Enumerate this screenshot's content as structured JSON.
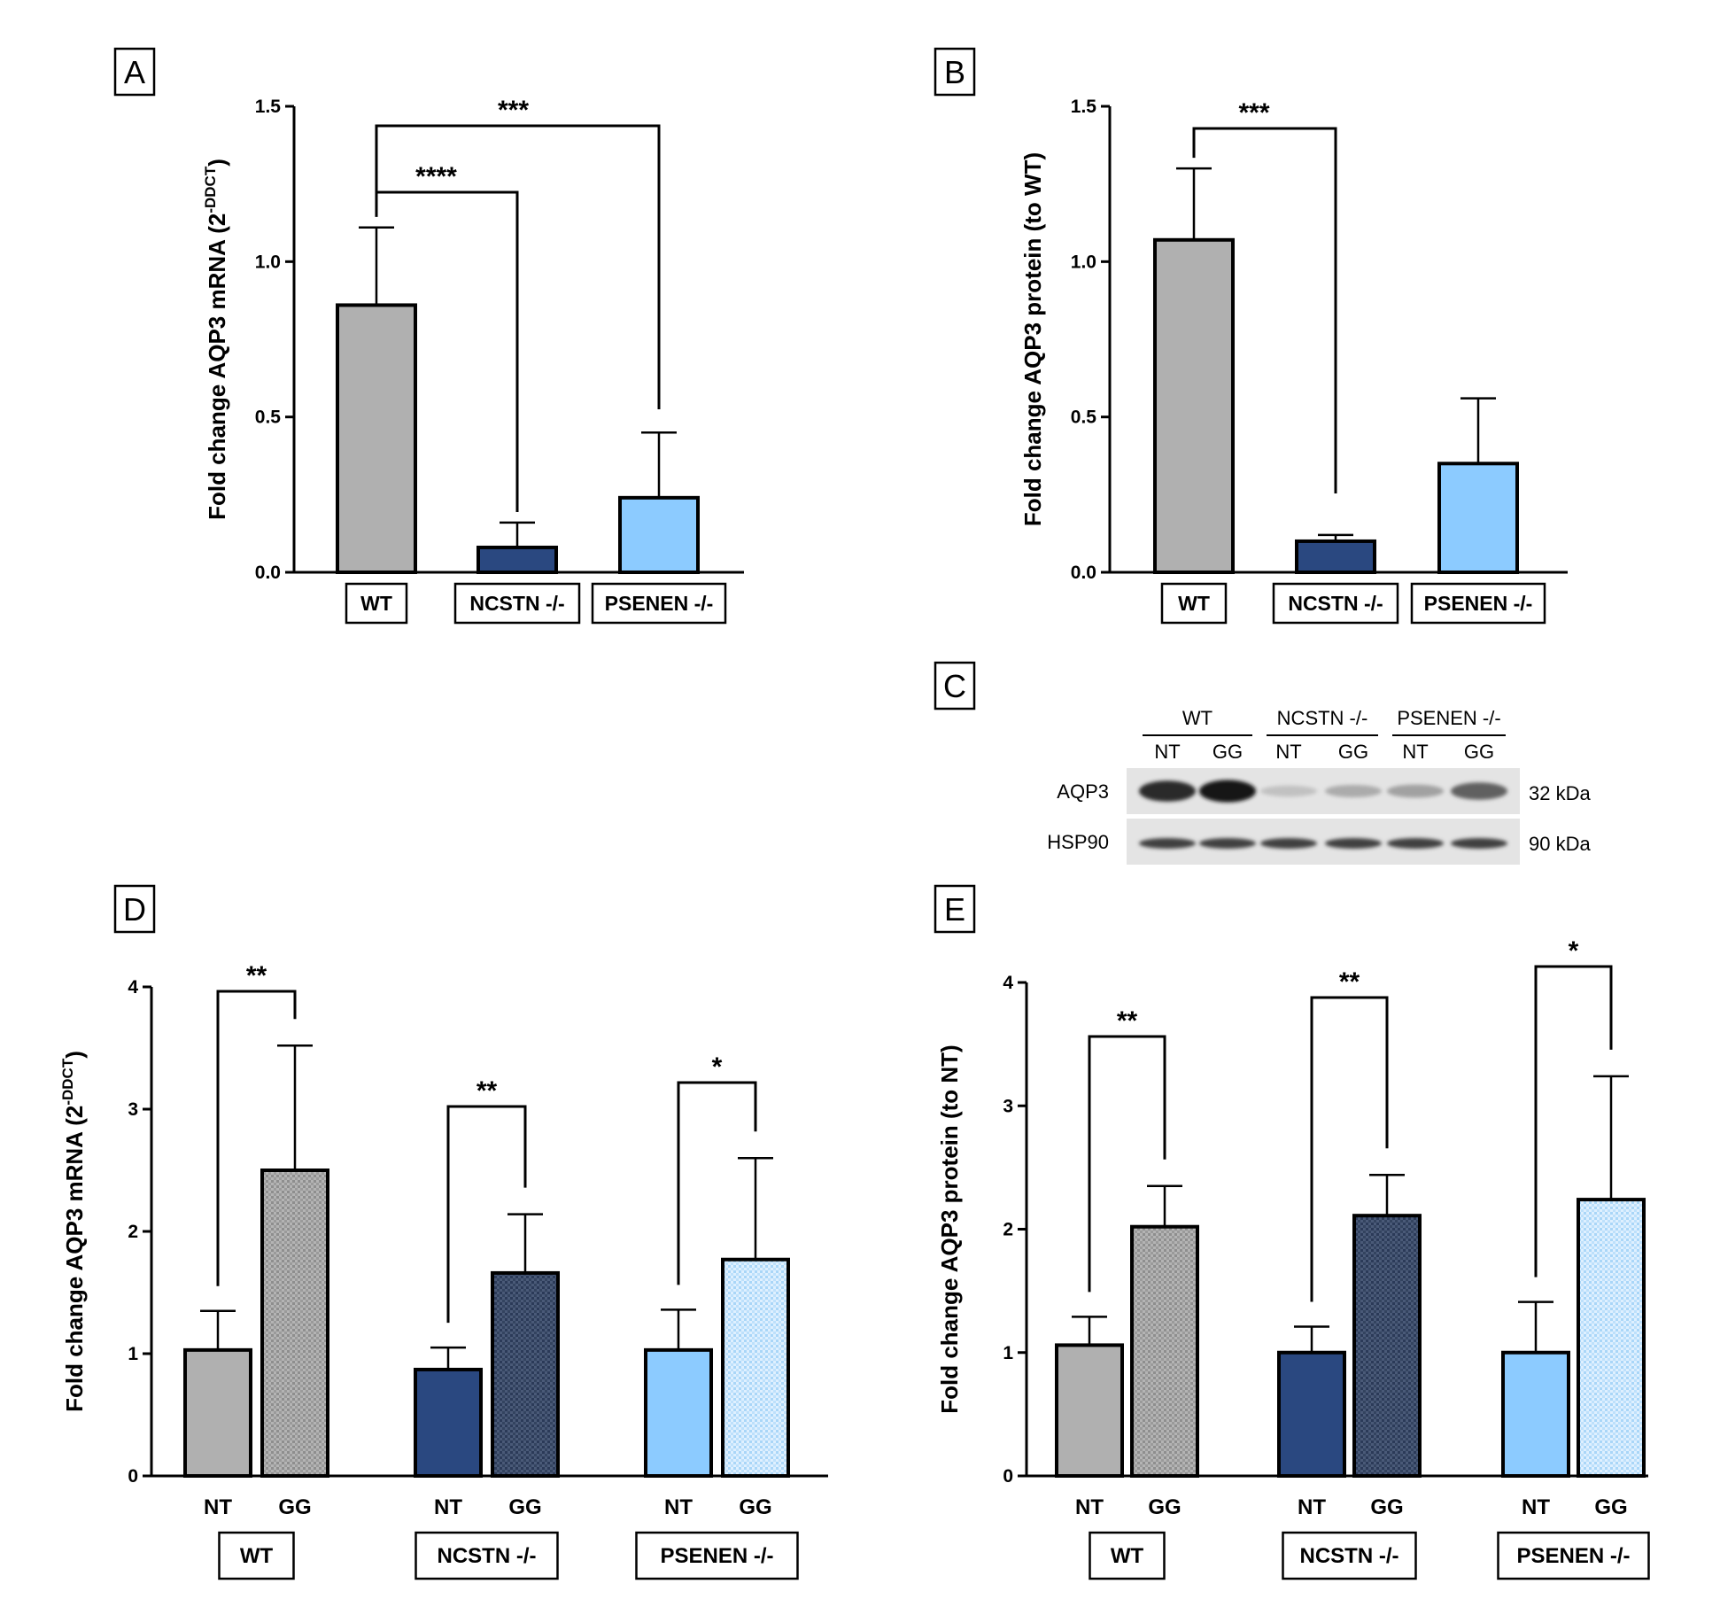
{
  "colors": {
    "WT": "#b0b0b0",
    "NCSTN": "#2a4880",
    "PSENEN": "#8ccbff",
    "axis": "#000000"
  },
  "chart_data": [
    {
      "id": "A",
      "type": "bar",
      "panel_label": "A",
      "ylabel": "Fold change AQP3 mRNA (2",
      "ylabel_sup": "-DDCT",
      "ylabel_close": ")",
      "ylim": [
        0,
        1.5
      ],
      "yticks": [
        "0.0",
        "0.5",
        "1.0",
        "1.5"
      ],
      "categories": [
        "WT",
        "NCSTN -/-",
        "PSENEN -/-"
      ],
      "values": [
        0.86,
        0.08,
        0.24
      ],
      "errors": [
        0.25,
        0.08,
        0.21
      ],
      "significance": [
        {
          "from": 0,
          "to": 1,
          "label": "****"
        },
        {
          "from": 0,
          "to": 2,
          "label": "***"
        }
      ]
    },
    {
      "id": "B",
      "type": "bar",
      "panel_label": "B",
      "ylabel": "Fold change AQP3 protein (to WT)",
      "ylim": [
        0,
        1.5
      ],
      "yticks": [
        "0.0",
        "0.5",
        "1.0",
        "1.5"
      ],
      "categories": [
        "WT",
        "NCSTN -/-",
        "PSENEN -/-"
      ],
      "values": [
        1.07,
        0.1,
        0.35
      ],
      "errors": [
        0.23,
        0.02,
        0.21
      ],
      "significance": [
        {
          "from": 0,
          "to": 1,
          "label": "***"
        }
      ]
    },
    {
      "id": "D",
      "type": "bar",
      "panel_label": "D",
      "ylabel": "Fold change AQP3 mRNA (2",
      "ylabel_sup": "-DDCT",
      "ylabel_close": ")",
      "ylim": [
        0,
        4
      ],
      "yticks": [
        "0",
        "1",
        "2",
        "3",
        "4"
      ],
      "groups": [
        "WT",
        "NCSTN -/-",
        "PSENEN -/-"
      ],
      "subcategories": [
        "NT",
        "GG"
      ],
      "series": [
        {
          "values": [
            1.03,
            0.87,
            1.03
          ]
        },
        {
          "values": [
            2.5,
            1.66,
            1.77
          ]
        }
      ],
      "errors": [
        [
          0.32,
          0.18,
          0.33
        ],
        [
          1.02,
          0.48,
          0.83
        ]
      ],
      "significance": [
        "**",
        "**",
        "*"
      ]
    },
    {
      "id": "E",
      "type": "bar",
      "panel_label": "E",
      "ylabel": "Fold change AQP3 protein (to NT)",
      "ylim": [
        0,
        4
      ],
      "yticks": [
        "0",
        "1",
        "2",
        "3",
        "4"
      ],
      "groups": [
        "WT",
        "NCSTN -/-",
        "PSENEN -/-"
      ],
      "subcategories": [
        "NT",
        "GG"
      ],
      "series": [
        {
          "values": [
            1.06,
            1.0,
            1.0
          ]
        },
        {
          "values": [
            2.02,
            2.11,
            2.24
          ]
        }
      ],
      "errors": [
        [
          0.23,
          0.21,
          0.41
        ],
        [
          0.33,
          0.33,
          1.0
        ]
      ],
      "significance": [
        "**",
        "**",
        "*"
      ]
    }
  ],
  "blot": {
    "panel_label": "C",
    "groups": [
      "WT",
      "NCSTN -/-",
      "PSENEN -/-"
    ],
    "lanes": [
      "NT",
      "GG",
      "NT",
      "GG",
      "NT",
      "GG"
    ],
    "rows": [
      {
        "name": "AQP3",
        "size": "32 kDa",
        "intensity": [
          0.85,
          0.95,
          0.15,
          0.25,
          0.3,
          0.6
        ]
      },
      {
        "name": "HSP90",
        "size": "90 kDa",
        "intensity": [
          0.75,
          0.75,
          0.75,
          0.75,
          0.75,
          0.75
        ]
      }
    ]
  }
}
